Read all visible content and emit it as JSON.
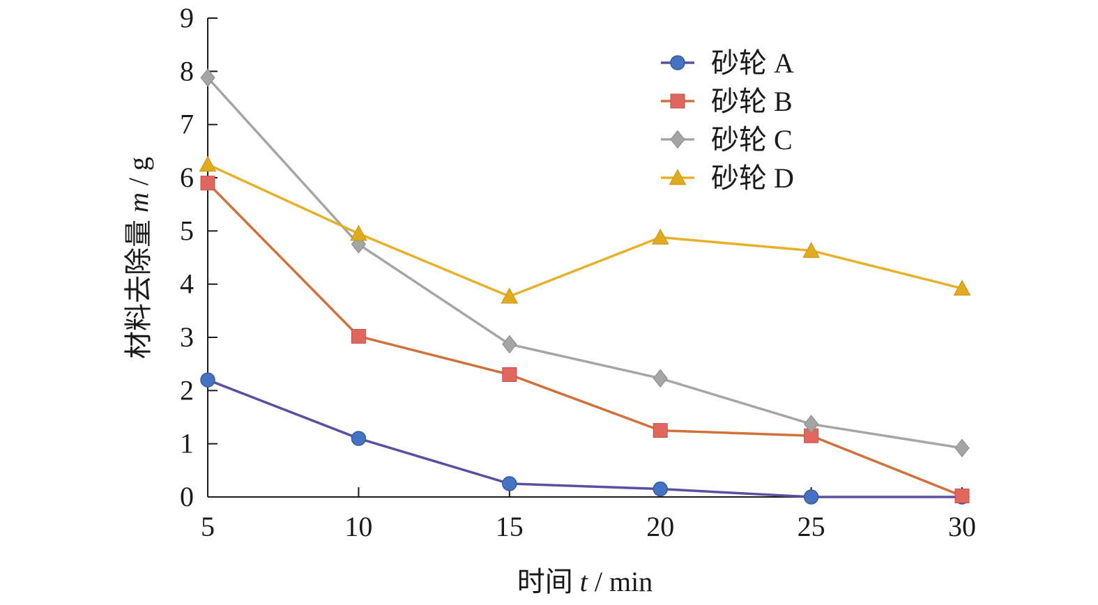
{
  "chart_data": {
    "type": "line",
    "xlabel_main": "时间 ",
    "xlabel_var": "t",
    "xlabel_unit": " / min",
    "ylabel_main": "材料去除量 ",
    "ylabel_var": "m",
    "ylabel_unit": " / g",
    "x": [
      5,
      10,
      15,
      20,
      25,
      30
    ],
    "xlim": [
      5,
      30
    ],
    "ylim": [
      0,
      9
    ],
    "xticks": [
      5,
      10,
      15,
      20,
      25,
      30
    ],
    "yticks": [
      0,
      1,
      2,
      3,
      4,
      5,
      6,
      7,
      8,
      9
    ],
    "grid": false,
    "legend_position": "top-right",
    "series": [
      {
        "name": "砂轮 A",
        "marker": "circle",
        "color": "#4472c4",
        "line_color": "#5a4fa0",
        "values": [
          2.2,
          1.1,
          0.25,
          0.15,
          0.0,
          0.0
        ]
      },
      {
        "name": "砂轮 B",
        "marker": "square",
        "color": "#e0665e",
        "line_color": "#d0703a",
        "values": [
          5.9,
          3.02,
          2.3,
          1.25,
          1.15,
          0.02
        ]
      },
      {
        "name": "砂轮 C",
        "marker": "diamond",
        "color": "#a5a5a5",
        "line_color": "#a5a5a5",
        "values": [
          7.88,
          4.75,
          2.87,
          2.23,
          1.37,
          0.92
        ]
      },
      {
        "name": "砂轮 D",
        "marker": "triangle",
        "color": "#e0ab1e",
        "line_color": "#e6b12a",
        "values": [
          6.25,
          4.95,
          3.77,
          4.88,
          4.63,
          3.92
        ]
      }
    ]
  }
}
